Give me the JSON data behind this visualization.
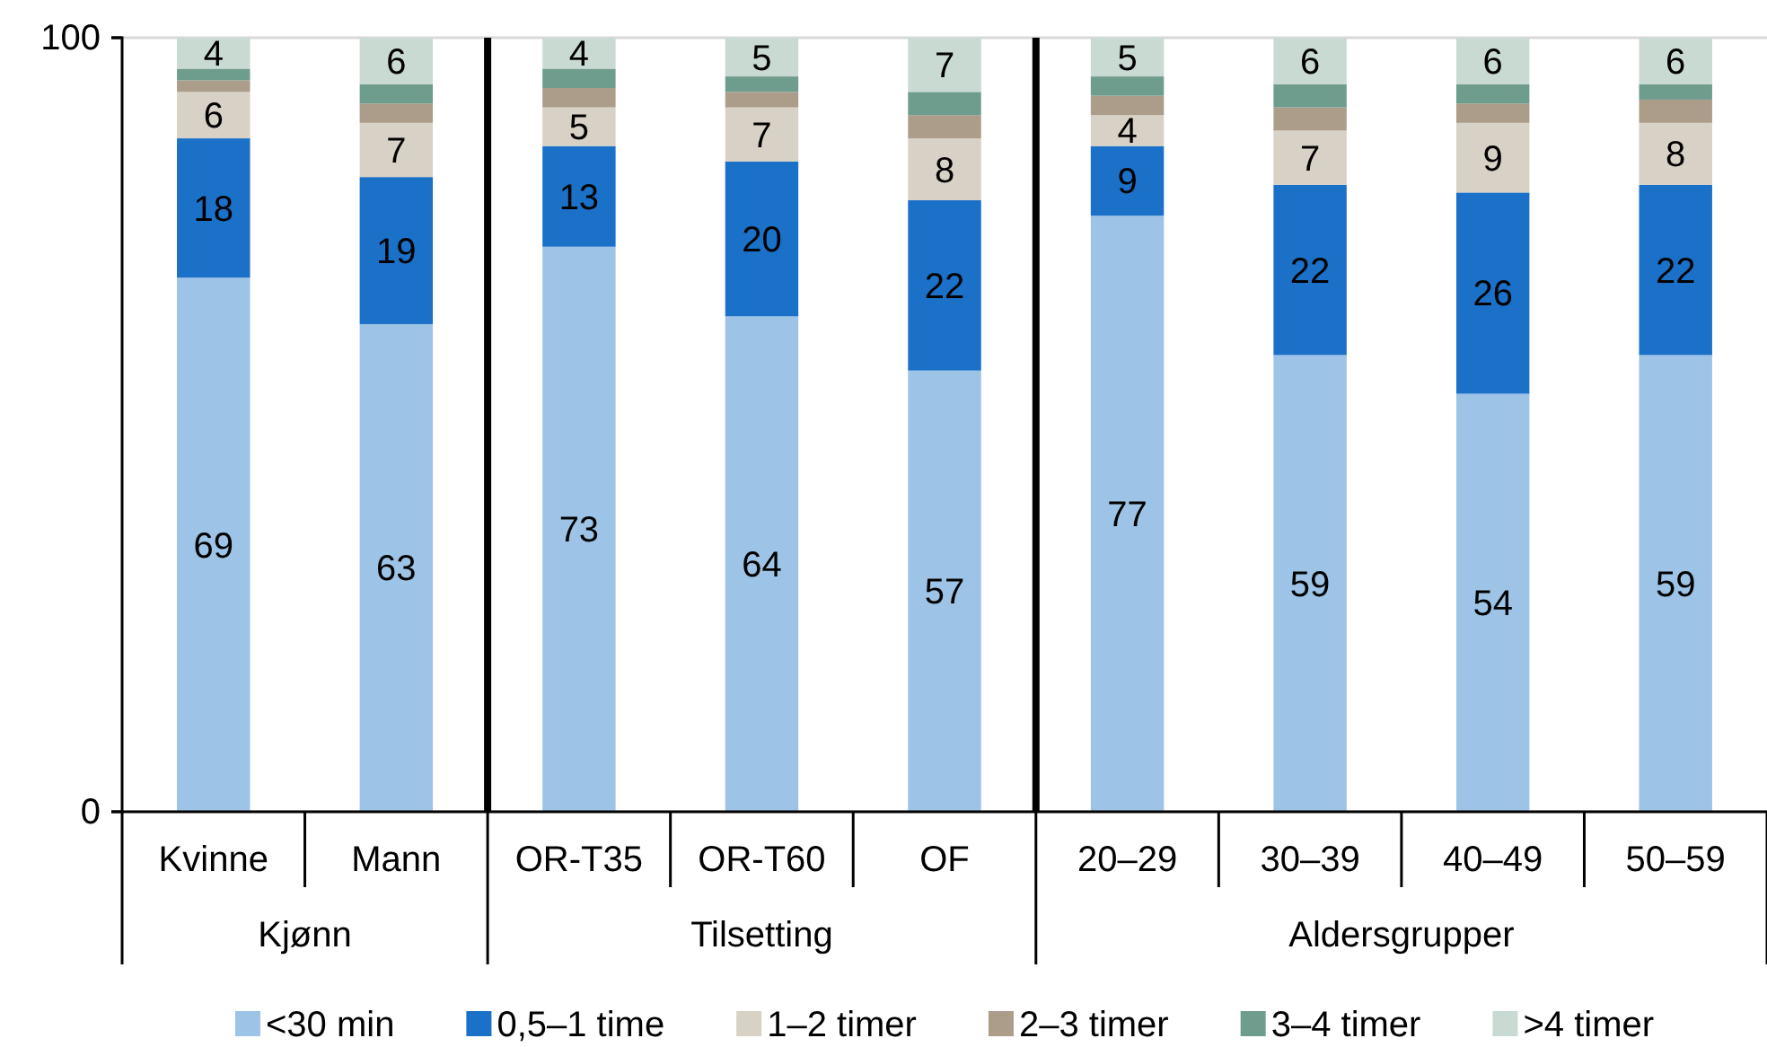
{
  "chart_data": {
    "type": "bar",
    "stacked": true,
    "categories": [
      "Kvinne",
      "Mann",
      "OR-T35",
      "OR-T60",
      "OF",
      "20–29",
      "30–39",
      "40–49",
      "50–59"
    ],
    "series": [
      {
        "name": "<30 min",
        "color": "#9dc3e6",
        "values": [
          69,
          63,
          73,
          64,
          57,
          77,
          59,
          54,
          59
        ],
        "value_labels": [
          "69",
          "63",
          "73",
          "64",
          "57",
          "77",
          "59",
          "54",
          "59"
        ]
      },
      {
        "name": "0,5–1 time",
        "color": "#1b70c8",
        "values": [
          18,
          19,
          13,
          20,
          22,
          9,
          22,
          26,
          22
        ],
        "value_labels": [
          "18",
          "19",
          "13",
          "20",
          "22",
          "9",
          "22",
          "26",
          "22"
        ]
      },
      {
        "name": "1–2 timer",
        "color": "#d8d1c5",
        "values": [
          6,
          7,
          5,
          7,
          8,
          4,
          7,
          9,
          8
        ],
        "value_labels": [
          "6",
          "7",
          "5",
          "7",
          "8",
          "4",
          "7",
          "9",
          "8"
        ]
      },
      {
        "name": "2–3 timer",
        "color": "#ab9d8a",
        "values": [
          1.5,
          2.5,
          2.5,
          2,
          3,
          2.5,
          3,
          2.5,
          3
        ]
      },
      {
        "name": "3–4 timer",
        "color": "#6f9d8d",
        "values": [
          1.5,
          2.5,
          2.5,
          2,
          3,
          2.5,
          3,
          2.5,
          2
        ]
      },
      {
        "name": ">4 timer",
        "color": "#c9dad3",
        "values": [
          4,
          6,
          4,
          5,
          7,
          5,
          6,
          6,
          6
        ],
        "value_labels": [
          "4",
          "6",
          "4",
          "5",
          "7",
          "5",
          "6",
          "6",
          "6"
        ]
      }
    ],
    "ylim": [
      0,
      100
    ],
    "yticks": [
      0,
      100
    ],
    "grid": "y",
    "legend": "bottom",
    "annotations": [
      "Kjønn",
      "Tilsetting",
      "Aldersgrupper"
    ]
  }
}
